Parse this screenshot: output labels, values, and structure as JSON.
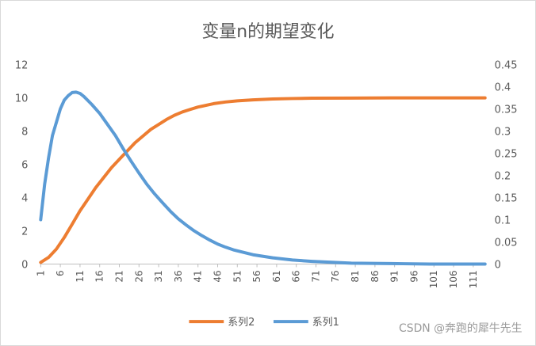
{
  "chart_data": {
    "type": "line",
    "title": "变量n的期望变化",
    "x": [
      1,
      6,
      11,
      16,
      21,
      26,
      31,
      36,
      41,
      46,
      51,
      56,
      61,
      66,
      71,
      76,
      81,
      86,
      91,
      96,
      101,
      106,
      111
    ],
    "x_tick_labels": [
      "1",
      "6",
      "11",
      "16",
      "21",
      "26",
      "31",
      "36",
      "41",
      "46",
      "51",
      "56",
      "61",
      "66",
      "71",
      "76",
      "81",
      "86",
      "91",
      "96",
      "101",
      "106",
      "111"
    ],
    "x_range": [
      1,
      114
    ],
    "y_left_range": [
      0,
      12
    ],
    "y_left_ticks": [
      "0",
      "2",
      "4",
      "6",
      "8",
      "10",
      "12"
    ],
    "y_right_range": [
      0,
      0.45
    ],
    "y_right_ticks": [
      "0",
      "0.05",
      "0.1",
      "0.15",
      "0.2",
      "0.25",
      "0.3",
      "0.35",
      "0.4",
      "0.45"
    ],
    "series": [
      {
        "name": "系列2",
        "axis": "left",
        "color": "#ED7D31",
        "points": [
          [
            1,
            0.1
          ],
          [
            3,
            0.4
          ],
          [
            5,
            0.9
          ],
          [
            7,
            1.6
          ],
          [
            9,
            2.4
          ],
          [
            11,
            3.2
          ],
          [
            13,
            3.9
          ],
          [
            15,
            4.6
          ],
          [
            17,
            5.2
          ],
          [
            19,
            5.8
          ],
          [
            21,
            6.3
          ],
          [
            23,
            6.8
          ],
          [
            25,
            7.3
          ],
          [
            27,
            7.7
          ],
          [
            29,
            8.1
          ],
          [
            31,
            8.4
          ],
          [
            33,
            8.7
          ],
          [
            35,
            8.95
          ],
          [
            37,
            9.15
          ],
          [
            39,
            9.3
          ],
          [
            41,
            9.45
          ],
          [
            43,
            9.55
          ],
          [
            45,
            9.65
          ],
          [
            48,
            9.75
          ],
          [
            51,
            9.82
          ],
          [
            55,
            9.88
          ],
          [
            60,
            9.93
          ],
          [
            65,
            9.96
          ],
          [
            70,
            9.98
          ],
          [
            80,
            9.99
          ],
          [
            90,
            10.0
          ],
          [
            100,
            10.0
          ],
          [
            114,
            10.0
          ]
        ]
      },
      {
        "name": "系列1",
        "axis": "right",
        "color": "#5B9BD5",
        "points": [
          [
            1,
            0.1
          ],
          [
            2,
            0.18
          ],
          [
            3,
            0.24
          ],
          [
            4,
            0.29
          ],
          [
            5,
            0.32
          ],
          [
            6,
            0.35
          ],
          [
            7,
            0.37
          ],
          [
            8,
            0.38
          ],
          [
            9,
            0.387
          ],
          [
            10,
            0.388
          ],
          [
            11,
            0.385
          ],
          [
            12,
            0.378
          ],
          [
            14,
            0.36
          ],
          [
            16,
            0.34
          ],
          [
            18,
            0.315
          ],
          [
            20,
            0.29
          ],
          [
            22,
            0.26
          ],
          [
            24,
            0.232
          ],
          [
            26,
            0.205
          ],
          [
            28,
            0.18
          ],
          [
            30,
            0.158
          ],
          [
            32,
            0.138
          ],
          [
            34,
            0.119
          ],
          [
            36,
            0.102
          ],
          [
            38,
            0.088
          ],
          [
            40,
            0.075
          ],
          [
            42,
            0.064
          ],
          [
            44,
            0.054
          ],
          [
            46,
            0.045
          ],
          [
            48,
            0.038
          ],
          [
            50,
            0.032
          ],
          [
            55,
            0.021
          ],
          [
            60,
            0.014
          ],
          [
            65,
            0.009
          ],
          [
            70,
            0.006
          ],
          [
            75,
            0.004
          ],
          [
            80,
            0.002
          ],
          [
            90,
            0.001
          ],
          [
            100,
            0.0
          ],
          [
            114,
            0.0
          ]
        ]
      }
    ],
    "legend_position": "bottom",
    "grid": false
  },
  "watermark": "CSDN @奔跑的犀牛先生"
}
